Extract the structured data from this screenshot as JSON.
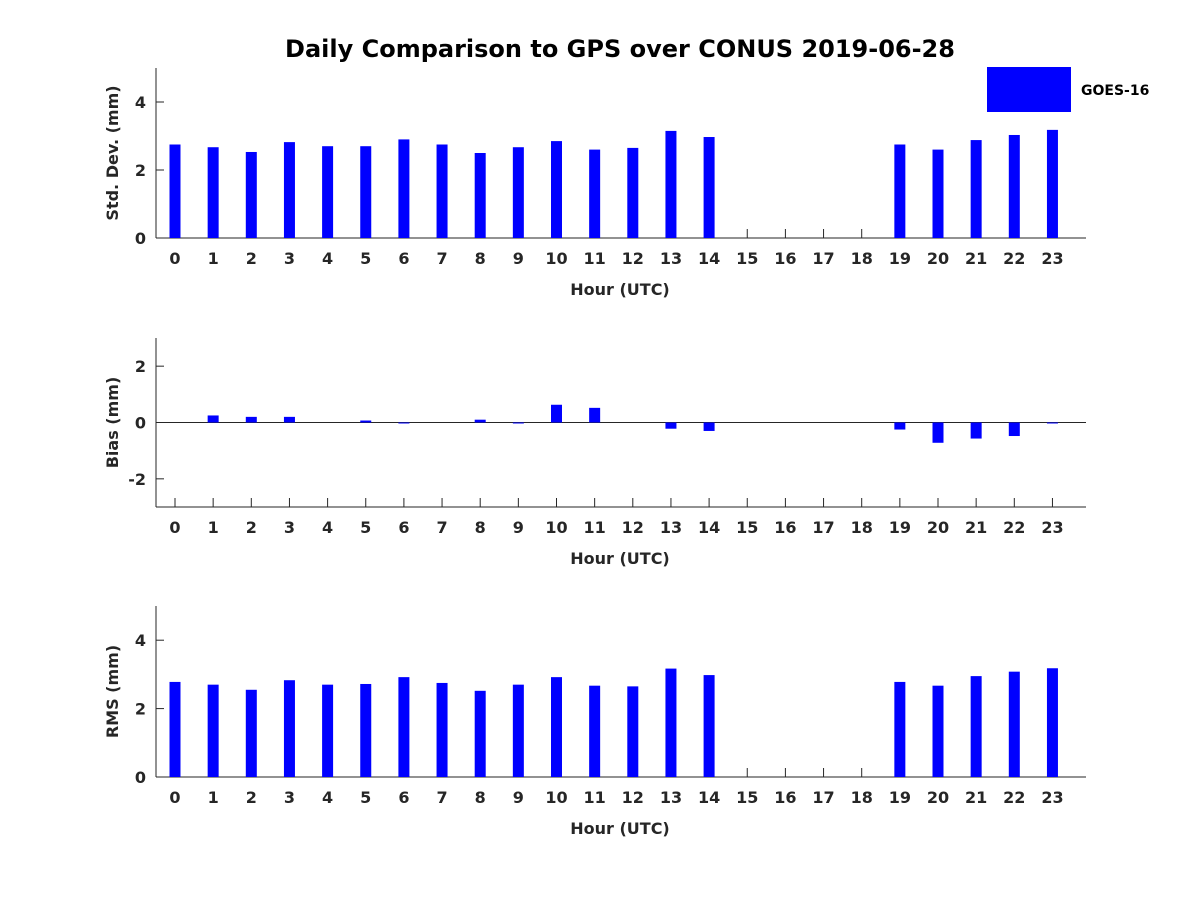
{
  "title": "Daily Comparison to GPS over CONUS 2019-06-28",
  "legend": {
    "label": "GOES-16",
    "color": "#0000ff",
    "position": "top-right"
  },
  "chart_data": [
    {
      "type": "bar",
      "name": "stddev",
      "title": "",
      "xlabel": "Hour (UTC)",
      "ylabel": "Std. Dev. (mm)",
      "ylim": [
        0,
        5
      ],
      "yticks": [
        0,
        2,
        4
      ],
      "categories": [
        "0",
        "1",
        "2",
        "3",
        "4",
        "5",
        "6",
        "7",
        "8",
        "9",
        "10",
        "11",
        "12",
        "13",
        "14",
        "15",
        "16",
        "17",
        "18",
        "19",
        "20",
        "21",
        "22",
        "23"
      ],
      "series": [
        {
          "name": "GOES-16",
          "values": [
            2.75,
            2.67,
            2.53,
            2.82,
            2.7,
            2.7,
            2.9,
            2.75,
            2.5,
            2.67,
            2.85,
            2.6,
            2.65,
            3.15,
            2.97,
            null,
            null,
            null,
            null,
            2.75,
            2.6,
            2.88,
            3.03,
            3.18
          ]
        }
      ],
      "grid": false
    },
    {
      "type": "bar",
      "name": "bias",
      "title": "",
      "xlabel": "Hour (UTC)",
      "ylabel": "Bias (mm)",
      "ylim": [
        -3,
        3
      ],
      "yticks": [
        -2,
        0,
        2
      ],
      "categories": [
        "0",
        "1",
        "2",
        "3",
        "4",
        "5",
        "6",
        "7",
        "8",
        "9",
        "10",
        "11",
        "12",
        "13",
        "14",
        "15",
        "16",
        "17",
        "18",
        "19",
        "20",
        "21",
        "22",
        "23"
      ],
      "series": [
        {
          "name": "GOES-16",
          "values": [
            0.0,
            0.25,
            0.2,
            0.2,
            0.0,
            0.07,
            -0.03,
            0.0,
            0.1,
            -0.02,
            0.63,
            0.52,
            0.0,
            -0.22,
            -0.3,
            null,
            null,
            null,
            null,
            -0.25,
            -0.72,
            -0.57,
            -0.48,
            -0.03
          ]
        }
      ],
      "grid": false
    },
    {
      "type": "bar",
      "name": "rms",
      "title": "",
      "xlabel": "Hour (UTC)",
      "ylabel": "RMS (mm)",
      "ylim": [
        0,
        5
      ],
      "yticks": [
        0,
        2,
        4
      ],
      "categories": [
        "0",
        "1",
        "2",
        "3",
        "4",
        "5",
        "6",
        "7",
        "8",
        "9",
        "10",
        "11",
        "12",
        "13",
        "14",
        "15",
        "16",
        "17",
        "18",
        "19",
        "20",
        "21",
        "22",
        "23"
      ],
      "series": [
        {
          "name": "GOES-16",
          "values": [
            2.78,
            2.7,
            2.55,
            2.83,
            2.7,
            2.72,
            2.92,
            2.75,
            2.52,
            2.7,
            2.92,
            2.67,
            2.65,
            3.17,
            2.98,
            null,
            null,
            null,
            null,
            2.78,
            2.67,
            2.95,
            3.08,
            3.18
          ]
        }
      ],
      "grid": false
    }
  ]
}
